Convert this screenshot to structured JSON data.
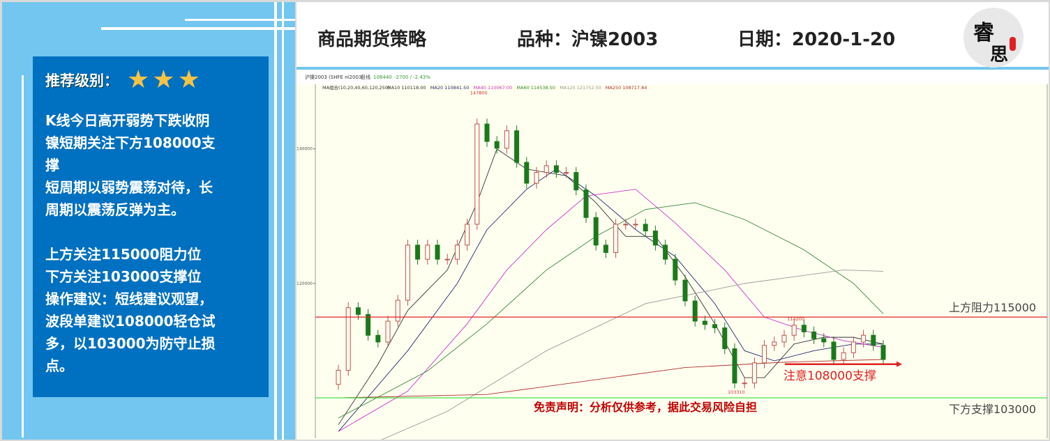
{
  "left_panel": {
    "rating_label": "推荐级别：",
    "rating_stars": 3,
    "body_text": "K线今日高开弱势下跌收阴\n镍短期关注下方108000支\n撑\n短周期以弱势震荡对待，长\n周期以震荡反弹为主。\n\n上方关注115000阻力位\n下方关注103000支撑位\n操作建议：短线建议观望，\n波段单建议108000轻仓试\n多，以103000为防守止损\n点。"
  },
  "header": {
    "title": "商品期货策略",
    "variety": "品种：沪镍2003",
    "date": "日期：2020-1-20",
    "logo_text": "睿思"
  },
  "chart_toolbar": {
    "symbol": "沪镍2003 (SHFE ni2003)",
    "period": "日线",
    "last_price": "108440",
    "change": "-2700 / -2.43%",
    "ma_group": "MA组合(10,20,40,60,120,250)",
    "ma_labels": [
      {
        "text": "MA10 110118.00",
        "color": "#333333"
      },
      {
        "text": "MA20 110841.50",
        "color": "#1f2a6b"
      },
      {
        "text": "MA40 110067.00",
        "color": "#cc33cc"
      },
      {
        "text": "MA60 114538.50",
        "color": "#338833"
      },
      {
        "text": "MA120 121752.50",
        "color": "#999999"
      },
      {
        "text": "MA250 108717.84",
        "color": "#b03030"
      }
    ]
  },
  "chart_data": {
    "type": "candlestick",
    "ylim": [
      97000,
      149600
    ],
    "y_ticks": [
      {
        "value": 140000,
        "label": "140000"
      },
      {
        "value": 120000,
        "label": "120000"
      }
    ],
    "closes": [
      107100,
      116400,
      115400,
      112300,
      111300,
      114400,
      117500,
      125700,
      123600,
      125700,
      123600,
      123600,
      125700,
      128800,
      143700,
      141100,
      140100,
      142700,
      138000,
      134900,
      136500,
      137500,
      136500,
      136500,
      133900,
      129800,
      125700,
      124600,
      128800,
      128800,
      128800,
      127800,
      125700,
      123600,
      120500,
      117400,
      114400,
      113900,
      113400,
      110300,
      105200,
      105200,
      108200,
      110800,
      111300,
      112300,
      113800,
      112800,
      111800,
      111300,
      108700,
      109700,
      111300,
      112300,
      110800,
      108700
    ],
    "first_open": 105000,
    "ma_lines": [
      {
        "name": "MA10",
        "color": "#333333",
        "points": [
          [
            1,
            99000
          ],
          [
            5,
            108000
          ],
          [
            8,
            116000
          ],
          [
            12,
            122000
          ],
          [
            15,
            132000
          ],
          [
            17,
            140000
          ],
          [
            20,
            137000
          ],
          [
            24,
            136000
          ],
          [
            27,
            132000
          ],
          [
            30,
            127000
          ],
          [
            33,
            127000
          ],
          [
            36,
            121000
          ],
          [
            39,
            114000
          ],
          [
            42,
            106000
          ],
          [
            44,
            106000
          ],
          [
            47,
            111000
          ],
          [
            50,
            112000
          ],
          [
            53,
            112000
          ],
          [
            56,
            111000
          ]
        ]
      },
      {
        "name": "MA20",
        "color": "#1f2a6b",
        "points": [
          [
            1,
            98000
          ],
          [
            8,
            110000
          ],
          [
            13,
            120000
          ],
          [
            16,
            128000
          ],
          [
            20,
            134000
          ],
          [
            23,
            137000
          ],
          [
            27,
            133000
          ],
          [
            31,
            128000
          ],
          [
            35,
            124000
          ],
          [
            39,
            117000
          ],
          [
            42,
            110000
          ],
          [
            45,
            108500
          ],
          [
            49,
            110000
          ],
          [
            53,
            111000
          ],
          [
            56,
            111000
          ]
        ]
      },
      {
        "name": "MA40",
        "color": "#cc33cc",
        "points": [
          [
            1,
            98000
          ],
          [
            8,
            104000
          ],
          [
            14,
            114000
          ],
          [
            18,
            122000
          ],
          [
            22,
            128000
          ],
          [
            26,
            133000
          ],
          [
            31,
            134000
          ],
          [
            35,
            129000
          ],
          [
            40,
            122000
          ],
          [
            44,
            115000
          ],
          [
            48,
            113000
          ],
          [
            52,
            111500
          ],
          [
            56,
            110500
          ]
        ]
      },
      {
        "name": "MA60",
        "color": "#338833",
        "points": [
          [
            1,
            100000
          ],
          [
            10,
            107000
          ],
          [
            16,
            114000
          ],
          [
            22,
            122000
          ],
          [
            27,
            127000
          ],
          [
            32,
            131000
          ],
          [
            37,
            132000
          ],
          [
            42,
            129500
          ],
          [
            48,
            125000
          ],
          [
            53,
            120000
          ],
          [
            56,
            115500
          ]
        ]
      },
      {
        "name": "MA120",
        "color": "#999999",
        "points": [
          [
            1,
            94000
          ],
          [
            12,
            101000
          ],
          [
            22,
            110000
          ],
          [
            32,
            117000
          ],
          [
            42,
            120000
          ],
          [
            52,
            122000
          ],
          [
            56,
            121800
          ]
        ]
      },
      {
        "name": "MA250",
        "color": "#b03030",
        "points": [
          [
            1,
            103000
          ],
          [
            16,
            103500
          ],
          [
            26,
            105500
          ],
          [
            36,
            107500
          ],
          [
            46,
            108300
          ],
          [
            56,
            108700
          ]
        ]
      }
    ],
    "annotations": [
      {
        "text": "147800",
        "value": 147800,
        "index": 15
      },
      {
        "text": "114200",
        "value": 114200,
        "index": 47
      },
      {
        "text": "103310",
        "value": 103310,
        "index": 41
      }
    ],
    "resistance": {
      "value": 115000,
      "label": "上方阻力115000",
      "color": "#e02020"
    },
    "support": {
      "value": 103000,
      "label": "下方支撑103000",
      "color": "#33dd33"
    },
    "support_note": {
      "value": 108000,
      "label": "注意108000支撑",
      "color": "#e02020"
    },
    "disclaimer": "免责声明：分析仅供参考，据此交易风险自担",
    "colors": {
      "up": "#c0504d",
      "down": "#1a7a1a",
      "background": "#fffff0"
    }
  }
}
